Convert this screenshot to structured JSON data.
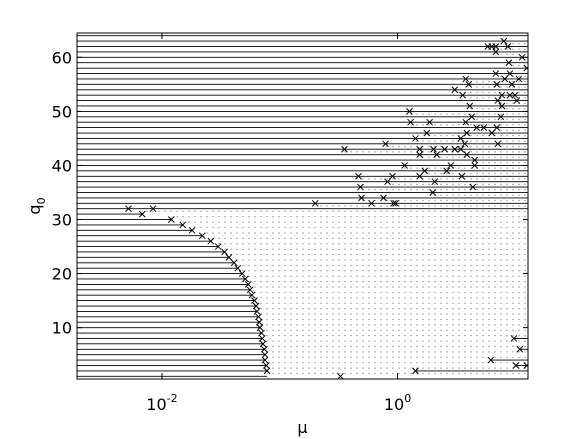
{
  "chart_data": {
    "type": "scatter",
    "xlabel": "μ",
    "ylabel": "q_0",
    "xscale": "log",
    "xlim": [
      0.0019,
      12.8
    ],
    "ylim": [
      0.5,
      64.5
    ],
    "xticks": [
      {
        "value": 0.01,
        "label": "10^-2"
      },
      {
        "value": 1,
        "label": "10^0"
      }
    ],
    "yticks": [
      10,
      20,
      30,
      40,
      50,
      60
    ],
    "color": "#000000",
    "points": {
      "x": [
        0.0052,
        0.0084,
        0.0068,
        0.012,
        0.015,
        0.018,
        0.022,
        0.026,
        0.03,
        0.034,
        0.037,
        0.041,
        0.044,
        0.048,
        0.051,
        0.054,
        0.056,
        0.058,
        0.061,
        0.063,
        0.064,
        0.066,
        0.067,
        0.068,
        0.07,
        0.071,
        0.072,
        0.074,
        0.075,
        0.075,
        0.077,
        0.078,
        7.98,
        5.83,
        6.31,
        6.82,
        8.63,
        6.82,
        11.4,
        8.81,
        12.5,
        6.82,
        8.98,
        3.79,
        8.14,
        10.7,
        4.02,
        6.96,
        9.34,
        3.06,
        3.57,
        7.68,
        8.98,
        9.9,
        7.1,
        10.3,
        4.1,
        7.68,
        1.26,
        4.26,
        7.53,
        1.29,
        1.87,
        3.79,
        4.7,
        5.39,
        6.96,
        1.77,
        3.87,
        6.31,
        1.42,
        3.44,
        0.791,
        3.72,
        7.1,
        0.354,
        1.54,
        2.02,
        2.51,
        3.06,
        3.44,
        1.54,
        2.15,
        3.87,
        4.52,
        1.15,
        2.83,
        4.52,
        1.7,
        2.61,
        0.466,
        0.906,
        1.54,
        3.51,
        0.822,
        2.07,
        0.484,
        4.35,
        1.99,
        0.494,
        0.76,
        0.2,
        0.601,
        0.925,
        0.962,
        9.71,
        10.9,
        6.18,
        10.1,
        12.5,
        1.42,
        0.327
      ],
      "y": [
        32,
        32,
        31,
        30,
        29,
        28,
        27,
        26,
        25,
        24,
        23,
        22,
        21,
        20,
        19,
        18,
        17,
        16,
        15,
        14,
        13,
        12,
        11,
        10,
        9,
        8,
        7,
        6,
        5,
        4,
        3,
        2,
        63,
        62,
        62,
        62,
        62,
        61,
        60,
        59,
        58,
        57,
        57,
        56,
        56,
        56,
        55,
        55,
        55,
        54,
        53,
        53,
        53,
        53,
        52,
        52,
        51,
        51,
        50,
        49,
        49,
        48,
        48,
        48,
        47,
        47,
        47,
        46,
        46,
        46,
        45,
        45,
        44,
        44,
        44,
        43,
        43,
        43,
        43,
        43,
        43,
        42,
        42,
        42,
        41,
        40,
        40,
        40,
        39,
        39,
        38,
        38,
        38,
        38,
        37,
        37,
        36,
        36,
        35,
        34,
        34,
        33,
        33,
        33,
        33,
        8,
        6,
        4,
        3,
        3,
        2,
        1
      ]
    },
    "segments": {
      "q": [
        1,
        2,
        3,
        4,
        5,
        6,
        7,
        8,
        9,
        10,
        11,
        12,
        13,
        14,
        15,
        16,
        17,
        18,
        19,
        20,
        21,
        22,
        23,
        24,
        25,
        26,
        27,
        28,
        29,
        30,
        31,
        32,
        33,
        34,
        35,
        36,
        37,
        38,
        39,
        40,
        41,
        42,
        43,
        44,
        45,
        46,
        47,
        48,
        49,
        50,
        51,
        52,
        53,
        54,
        55,
        56,
        57,
        58,
        59,
        60,
        61,
        62,
        63,
        64,
        8,
        6,
        4,
        3,
        2
      ],
      "from": [
        0.0019,
        0.0019,
        0.0019,
        0.0019,
        0.0019,
        0.0019,
        0.0019,
        0.0019,
        0.0019,
        0.0019,
        0.0019,
        0.0019,
        0.0019,
        0.0019,
        0.0019,
        0.0019,
        0.0019,
        0.0019,
        0.0019,
        0.0019,
        0.0019,
        0.0019,
        0.0019,
        0.0019,
        0.0019,
        0.0019,
        0.0019,
        0.0019,
        0.0019,
        0.0019,
        0.0019,
        0.0019,
        0.0019,
        0.0019,
        0.0019,
        0.0019,
        0.0019,
        0.0019,
        0.0019,
        0.0019,
        0.0019,
        0.0019,
        0.0019,
        0.0019,
        0.0019,
        0.0019,
        0.0019,
        0.0019,
        0.0019,
        0.0019,
        0.0019,
        0.0019,
        0.0019,
        0.0019,
        0.0019,
        0.0019,
        0.0019,
        0.0019,
        0.0019,
        0.0019,
        0.0019,
        0.0019,
        0.0019,
        0.0019,
        9.71,
        10.9,
        6.18,
        10.1,
        1.42
      ],
      "to": [
        0.078,
        0.078,
        0.077,
        0.075,
        0.075,
        0.074,
        0.072,
        0.071,
        0.07,
        0.068,
        0.067,
        0.066,
        0.064,
        0.063,
        0.061,
        0.058,
        0.056,
        0.054,
        0.051,
        0.048,
        0.044,
        0.041,
        0.037,
        0.034,
        0.03,
        0.026,
        0.022,
        0.018,
        0.015,
        0.012,
        0.0068,
        12.8,
        12.8,
        12.8,
        12.8,
        12.8,
        12.8,
        12.8,
        12.8,
        12.8,
        12.8,
        12.8,
        12.8,
        12.8,
        12.8,
        12.8,
        12.8,
        12.8,
        12.8,
        12.8,
        12.8,
        12.8,
        12.8,
        12.8,
        12.8,
        12.8,
        12.8,
        12.8,
        12.8,
        12.8,
        12.8,
        12.8,
        12.8,
        12.8,
        12.8,
        12.8,
        12.8,
        12.8,
        12.8
      ]
    }
  }
}
